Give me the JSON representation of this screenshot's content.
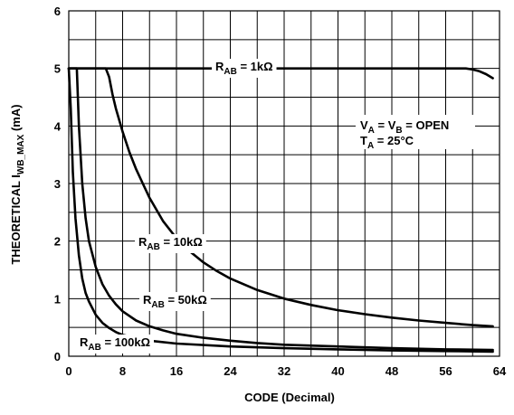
{
  "chart_data": {
    "type": "line",
    "xlabel": "CODE (Decimal)",
    "ylabel": {
      "main": "THEORETICAL I",
      "sub": "WB_MAX",
      "unit": " (mA)"
    },
    "xlim": [
      0,
      64
    ],
    "ylim": [
      0,
      6
    ],
    "xticks": [
      "0",
      "8",
      "16",
      "24",
      "32",
      "40",
      "48",
      "56",
      "64"
    ],
    "yticks": [
      "0",
      "1",
      "2",
      "3",
      "4",
      "5",
      "6"
    ],
    "grid": true,
    "colors": {
      "line": "#000000",
      "grid": "#000000",
      "background": "#ffffff"
    },
    "annotation": {
      "line1": {
        "v1": "V",
        "s1": "A",
        "mid": " = V",
        "s2": "B",
        "end": " = OPEN"
      },
      "line2": {
        "t": "T",
        "s": "A",
        "end": " = 25°C"
      }
    },
    "series": [
      {
        "name": "1k",
        "label": {
          "main": "R",
          "sub": "AB",
          "end": " = 1kΩ"
        },
        "x": [
          0,
          10,
          20,
          30,
          40,
          50,
          59,
          60,
          61,
          62,
          63
        ],
        "y": [
          5.0,
          5.0,
          5.0,
          5.0,
          5.0,
          5.0,
          5.0,
          4.98,
          4.95,
          4.9,
          4.83
        ]
      },
      {
        "name": "10k",
        "label": {
          "main": "R",
          "sub": "AB",
          "end": " = 10kΩ"
        },
        "x": [
          0,
          5.5,
          6,
          6.5,
          7,
          8,
          9,
          10,
          11,
          12,
          14,
          16,
          18,
          20,
          22,
          24,
          28,
          32,
          36,
          40,
          44,
          48,
          52,
          56,
          60,
          63
        ],
        "y": [
          5.0,
          5.0,
          4.85,
          4.55,
          4.3,
          3.9,
          3.55,
          3.25,
          3.0,
          2.75,
          2.35,
          2.05,
          1.82,
          1.63,
          1.48,
          1.35,
          1.15,
          1.0,
          0.89,
          0.8,
          0.73,
          0.67,
          0.62,
          0.58,
          0.54,
          0.52
        ]
      },
      {
        "name": "50k",
        "label": {
          "main": "R",
          "sub": "AB",
          "end": " = 50kΩ"
        },
        "x": [
          0,
          1.2,
          1.5,
          2,
          2.5,
          3,
          4,
          5,
          6,
          7,
          8,
          10,
          12,
          14,
          16,
          20,
          24,
          28,
          32,
          40,
          48,
          56,
          63
        ],
        "y": [
          5.0,
          5.0,
          4.0,
          3.0,
          2.4,
          2.0,
          1.55,
          1.25,
          1.05,
          0.9,
          0.78,
          0.62,
          0.52,
          0.45,
          0.39,
          0.32,
          0.27,
          0.23,
          0.2,
          0.17,
          0.14,
          0.12,
          0.11
        ]
      },
      {
        "name": "100k",
        "label": {
          "main": "R",
          "sub": "AB",
          "end": " = 100kΩ"
        },
        "x": [
          0,
          0.3,
          0.6,
          1,
          1.5,
          2,
          2.5,
          3,
          4,
          5,
          6,
          7,
          8,
          12,
          16,
          24,
          32,
          40,
          48,
          56,
          63
        ],
        "y": [
          5.0,
          4.3,
          3.2,
          2.4,
          1.75,
          1.35,
          1.1,
          0.95,
          0.72,
          0.58,
          0.49,
          0.42,
          0.37,
          0.27,
          0.22,
          0.17,
          0.14,
          0.12,
          0.1,
          0.09,
          0.08
        ]
      }
    ]
  }
}
